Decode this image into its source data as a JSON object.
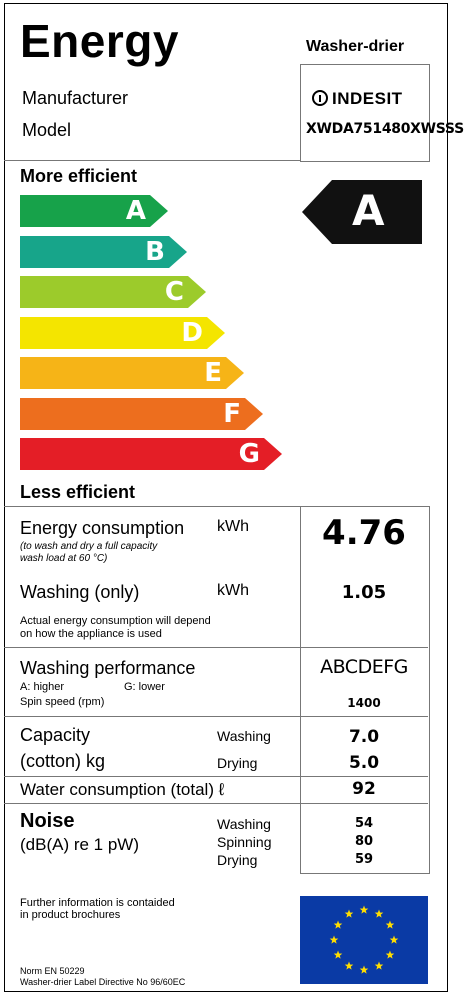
{
  "header": {
    "title": "Energy",
    "product_type": "Washer-drier"
  },
  "identity": {
    "manufacturer_label": "Manufacturer",
    "model_label": "Model",
    "brand": "INDESIT",
    "model_value": "XWDA751480XWSSS"
  },
  "scale": {
    "top_label": "More efficient",
    "bottom_label": "Less efficient",
    "classes": [
      {
        "letter": "A",
        "color": "#17a24a"
      },
      {
        "letter": "B",
        "color": "#17a58a"
      },
      {
        "letter": "C",
        "color": "#9ccb2b"
      },
      {
        "letter": "D",
        "color": "#f4e500"
      },
      {
        "letter": "E",
        "color": "#f6b417"
      },
      {
        "letter": "F",
        "color": "#ed6e1e"
      },
      {
        "letter": "G",
        "color": "#e41e26"
      }
    ],
    "rating": "A"
  },
  "energy": {
    "label": "Energy consumption",
    "unit": "kWh",
    "note1": "(to wash and dry a full capacity",
    "note2": "wash load at 60 °C)",
    "value": "4.76"
  },
  "washing_only": {
    "label": "Washing (only)",
    "unit": "kWh",
    "value": "1.05",
    "note1": "Actual energy consumption will depend",
    "note2": "on how the appliance is used"
  },
  "performance": {
    "label": "Washing performance",
    "scale_text": "ABCDEFG",
    "higher": "A: higher",
    "lower": "G: lower",
    "spin_label": "Spin speed (rpm)",
    "spin_value": "1400"
  },
  "capacity": {
    "label1": "Capacity",
    "label2": "(cotton) kg",
    "washing_label": "Washing",
    "washing_value": "7.0",
    "drying_label": "Drying",
    "drying_value": "5.0"
  },
  "water": {
    "label": "Water consumption (total) ℓ",
    "value": "92"
  },
  "noise": {
    "label": "Noise",
    "unit": "(dB(A) re 1 pW)",
    "washing_label": "Washing",
    "washing_value": "54",
    "spinning_label": "Spinning",
    "spinning_value": "80",
    "drying_label": "Drying",
    "drying_value": "59"
  },
  "footer": {
    "info1": "Further information is contaided",
    "info2": "in product brochures",
    "norm": "Norm EN 50229",
    "directive": "Washer-drier Label Directive No 96/60EC"
  }
}
